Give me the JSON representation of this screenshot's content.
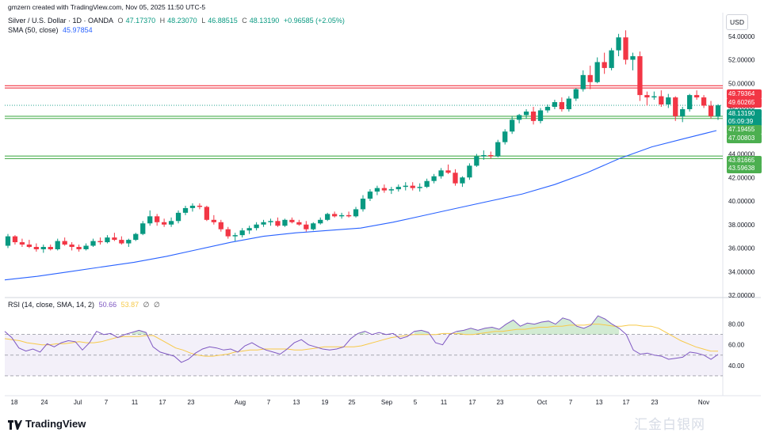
{
  "header": {
    "credit": "gmzern created with TradingView.com, Nov 05, 2025 11:50 UTC-5",
    "symbol": "Silver / U.S. Dollar · 1D · OANDA",
    "open_label": "O",
    "open": "47.17370",
    "high_label": "H",
    "high": "48.23070",
    "low_label": "L",
    "low": "46.88515",
    "close_label": "C",
    "close": "48.13190",
    "change": "+0.96585 (+2.05%)",
    "sma_label": "SMA (50, close)",
    "sma_value": "45.97854",
    "rsi_label": "RSI (14, close, SMA, 14, 2)",
    "rsi_value": "50.66",
    "rsi_sma_value": "53.87",
    "rsi_extra1": "∅",
    "rsi_extra2": "∅"
  },
  "currency": "USD",
  "price_tags": {
    "r1": "49.79364",
    "r2": "49.60265",
    "last": "48.13190",
    "countdown": "05:09:39",
    "s1": "47.19455",
    "s2": "47.00803",
    "s3": "43.81665",
    "s4": "43.59638"
  },
  "branding": {
    "logo": "TradingView",
    "watermark": "汇金白银网"
  },
  "colors": {
    "up": "#089981",
    "down": "#f23645",
    "sma": "#2962ff",
    "rsi": "#7e57c2",
    "rsi_sma": "#f7c948",
    "resistance": "#f23645",
    "support": "#4caf50"
  },
  "chart_data": {
    "type": "candlestick",
    "price_axis": {
      "ticks": [
        "54.00000",
        "52.00000",
        "50.00000",
        "48.00000",
        "46.00000",
        "44.00000",
        "42.00000",
        "40.00000",
        "38.00000",
        "36.00000",
        "34.00000",
        "32.00000"
      ],
      "ylim": [
        32,
        56
      ]
    },
    "rsi_axis": {
      "ticks": [
        "80.00",
        "60.00",
        "40.00"
      ],
      "ylim": [
        20,
        95
      ],
      "upper_band": 70,
      "lower_band": 30,
      "mid": 50
    },
    "x_ticks": [
      "18",
      "24",
      "Jul",
      "7",
      "11",
      "17",
      "23",
      "Aug",
      "7",
      "13",
      "19",
      "25",
      "Sep",
      "5",
      "11",
      "17",
      "23",
      "Oct",
      "7",
      "13",
      "17",
      "23",
      "Nov"
    ],
    "horizontal_levels": [
      {
        "value": 49.79364,
        "kind": "resistance"
      },
      {
        "value": 49.60265,
        "kind": "resistance"
      },
      {
        "value": 47.19455,
        "kind": "support"
      },
      {
        "value": 47.00803,
        "kind": "support"
      },
      {
        "value": 43.81665,
        "kind": "support"
      },
      {
        "value": 43.59638,
        "kind": "support"
      }
    ],
    "ohlc": [
      [
        36.2,
        37.2,
        36.0,
        37.0
      ],
      [
        37.0,
        37.1,
        36.3,
        36.5
      ],
      [
        36.5,
        36.8,
        36.1,
        36.3
      ],
      [
        36.3,
        36.7,
        36.0,
        36.1
      ],
      [
        36.1,
        36.4,
        35.7,
        35.9
      ],
      [
        35.9,
        36.3,
        35.6,
        36.1
      ],
      [
        36.1,
        36.3,
        35.8,
        35.9
      ],
      [
        35.9,
        36.8,
        35.8,
        36.6
      ],
      [
        36.6,
        36.9,
        36.2,
        36.3
      ],
      [
        36.3,
        36.5,
        35.8,
        36.1
      ],
      [
        36.1,
        36.3,
        35.7,
        35.9
      ],
      [
        35.9,
        36.4,
        35.8,
        36.2
      ],
      [
        36.2,
        36.8,
        36.1,
        36.6
      ],
      [
        36.6,
        36.9,
        36.3,
        36.5
      ],
      [
        36.5,
        37.1,
        36.4,
        36.9
      ],
      [
        36.9,
        37.3,
        36.6,
        36.7
      ],
      [
        36.7,
        37.0,
        36.3,
        36.4
      ],
      [
        36.4,
        36.8,
        36.1,
        36.7
      ],
      [
        36.7,
        37.3,
        36.6,
        37.2
      ],
      [
        37.2,
        38.3,
        37.1,
        38.1
      ],
      [
        38.1,
        39.2,
        37.9,
        38.7
      ],
      [
        38.7,
        38.9,
        37.9,
        38.2
      ],
      [
        38.2,
        38.5,
        37.8,
        38.0
      ],
      [
        38.0,
        38.6,
        37.8,
        38.3
      ],
      [
        38.3,
        39.2,
        38.1,
        39.0
      ],
      [
        39.0,
        39.6,
        38.8,
        39.4
      ],
      [
        39.4,
        39.8,
        39.1,
        39.6
      ],
      [
        39.6,
        39.8,
        39.3,
        39.5
      ],
      [
        39.5,
        39.6,
        38.3,
        38.4
      ],
      [
        38.4,
        38.8,
        38.0,
        38.2
      ],
      [
        38.2,
        38.4,
        37.4,
        37.6
      ],
      [
        37.6,
        37.8,
        36.8,
        37.0
      ],
      [
        37.0,
        37.3,
        36.6,
        37.1
      ],
      [
        37.1,
        37.7,
        36.9,
        37.5
      ],
      [
        37.5,
        37.9,
        37.2,
        37.7
      ],
      [
        37.7,
        38.2,
        37.5,
        38.0
      ],
      [
        38.0,
        38.4,
        37.8,
        38.2
      ],
      [
        38.2,
        38.5,
        37.9,
        38.3
      ],
      [
        38.3,
        38.6,
        37.8,
        37.9
      ],
      [
        37.9,
        38.5,
        37.8,
        38.4
      ],
      [
        38.4,
        38.6,
        38.1,
        38.2
      ],
      [
        38.2,
        38.4,
        37.9,
        38.0
      ],
      [
        38.0,
        38.3,
        37.4,
        37.6
      ],
      [
        37.6,
        38.2,
        37.5,
        38.1
      ],
      [
        38.1,
        38.6,
        38.0,
        38.4
      ],
      [
        38.4,
        39.0,
        38.3,
        38.9
      ],
      [
        38.9,
        39.1,
        38.6,
        38.7
      ],
      [
        38.7,
        39.0,
        38.5,
        38.8
      ],
      [
        38.8,
        39.1,
        38.6,
        38.7
      ],
      [
        38.7,
        39.5,
        38.6,
        39.3
      ],
      [
        39.3,
        40.5,
        39.1,
        40.2
      ],
      [
        40.2,
        41.0,
        40.0,
        40.8
      ],
      [
        40.8,
        41.3,
        40.5,
        41.1
      ],
      [
        41.1,
        41.4,
        40.7,
        40.9
      ],
      [
        40.9,
        41.2,
        40.6,
        41.0
      ],
      [
        41.0,
        41.4,
        40.8,
        41.2
      ],
      [
        41.2,
        41.6,
        40.9,
        41.3
      ],
      [
        41.3,
        41.6,
        40.9,
        41.1
      ],
      [
        41.1,
        41.5,
        40.8,
        41.2
      ],
      [
        41.2,
        41.9,
        41.1,
        41.7
      ],
      [
        41.7,
        42.3,
        41.5,
        42.1
      ],
      [
        42.1,
        42.8,
        41.9,
        42.6
      ],
      [
        42.6,
        43.1,
        42.3,
        42.4
      ],
      [
        42.4,
        42.7,
        41.3,
        41.5
      ],
      [
        41.5,
        42.1,
        41.2,
        42.0
      ],
      [
        42.0,
        43.2,
        41.8,
        43.0
      ],
      [
        43.0,
        44.0,
        42.9,
        43.8
      ],
      [
        43.8,
        44.3,
        43.5,
        43.9
      ],
      [
        43.9,
        44.2,
        43.6,
        43.8
      ],
      [
        43.8,
        45.2,
        43.7,
        45.0
      ],
      [
        45.0,
        46.1,
        44.8,
        45.9
      ],
      [
        45.9,
        47.2,
        45.7,
        46.9
      ],
      [
        46.9,
        47.4,
        46.6,
        47.3
      ],
      [
        47.3,
        47.8,
        47.0,
        47.6
      ],
      [
        47.6,
        48.0,
        46.5,
        46.8
      ],
      [
        46.8,
        47.9,
        46.6,
        47.7
      ],
      [
        47.7,
        48.2,
        47.5,
        48.0
      ],
      [
        48.0,
        48.6,
        47.8,
        48.4
      ],
      [
        48.4,
        48.8,
        47.6,
        47.8
      ],
      [
        47.8,
        48.9,
        47.6,
        48.7
      ],
      [
        48.7,
        49.6,
        48.5,
        49.5
      ],
      [
        49.5,
        51.1,
        49.3,
        50.7
      ],
      [
        50.7,
        51.5,
        49.5,
        50.1
      ],
      [
        50.1,
        52.2,
        50.0,
        51.8
      ],
      [
        51.8,
        52.6,
        50.8,
        51.3
      ],
      [
        51.3,
        53.0,
        51.1,
        52.8
      ],
      [
        52.8,
        54.2,
        52.3,
        53.9
      ],
      [
        53.9,
        54.5,
        51.6,
        52.0
      ],
      [
        52.0,
        52.6,
        51.1,
        52.3
      ],
      [
        52.3,
        52.7,
        48.5,
        49.0
      ],
      [
        49.0,
        49.3,
        48.1,
        48.8
      ],
      [
        48.8,
        49.3,
        48.6,
        48.9
      ],
      [
        48.9,
        49.4,
        48.0,
        48.2
      ],
      [
        48.2,
        49.1,
        47.9,
        48.8
      ],
      [
        48.8,
        48.9,
        46.8,
        47.2
      ],
      [
        47.2,
        48.0,
        46.7,
        47.8
      ],
      [
        47.8,
        49.1,
        47.6,
        49.0
      ],
      [
        49.0,
        49.4,
        48.6,
        48.8
      ],
      [
        48.8,
        49.0,
        47.9,
        48.1
      ],
      [
        48.1,
        48.5,
        47.0,
        47.2
      ],
      [
        47.17,
        48.23,
        46.89,
        48.13
      ]
    ],
    "sma50": [
      33.3,
      33.6,
      34.0,
      34.4,
      34.8,
      35.3,
      35.9,
      36.5,
      37.0,
      37.3,
      37.5,
      37.7,
      38.2,
      38.8,
      39.4,
      40.0,
      40.6,
      41.4,
      42.4,
      43.6,
      44.6,
      45.3,
      45.98
    ],
    "rsi": [
      73,
      67,
      57,
      54,
      56,
      53,
      61,
      58,
      62,
      64,
      63,
      55,
      62,
      73,
      70,
      71,
      67,
      70,
      72,
      74,
      72,
      58,
      53,
      51,
      49,
      43,
      46,
      52,
      56,
      58,
      57,
      55,
      56,
      53,
      59,
      62,
      58,
      55,
      53,
      51,
      56,
      62,
      65,
      60,
      58,
      56,
      55,
      56,
      58,
      66,
      71,
      73,
      70,
      72,
      70,
      71,
      66,
      68,
      73,
      74,
      72,
      62,
      60,
      70,
      73,
      74,
      76,
      74,
      76,
      77,
      75,
      80,
      84,
      78,
      81,
      80,
      82,
      83,
      80,
      86,
      84,
      78,
      76,
      79,
      88,
      85,
      80,
      76,
      70,
      55,
      51,
      52,
      50,
      49,
      46,
      47,
      48,
      53,
      52,
      50,
      46,
      50.66
    ],
    "rsi_sma": [
      66,
      65,
      64,
      62,
      61,
      60,
      60,
      61,
      61,
      62,
      63,
      62,
      62,
      63,
      65,
      67,
      68,
      68,
      68,
      69,
      69,
      65,
      61,
      57,
      55,
      52,
      50,
      49,
      49,
      50,
      51,
      53,
      54,
      55,
      55,
      56,
      56,
      56,
      56,
      55,
      55,
      56,
      57,
      58,
      58,
      58,
      58,
      58,
      59,
      61,
      63,
      65,
      67,
      68,
      69,
      70,
      70,
      70,
      70,
      71,
      71,
      71,
      70,
      70,
      71,
      72,
      73,
      73,
      74,
      75,
      75,
      76,
      77,
      77,
      78,
      78,
      79,
      79,
      79,
      80,
      80,
      79,
      78,
      78,
      79,
      79,
      78,
      78,
      76,
      72,
      68,
      64,
      61,
      58,
      56,
      54,
      53.87
    ]
  }
}
